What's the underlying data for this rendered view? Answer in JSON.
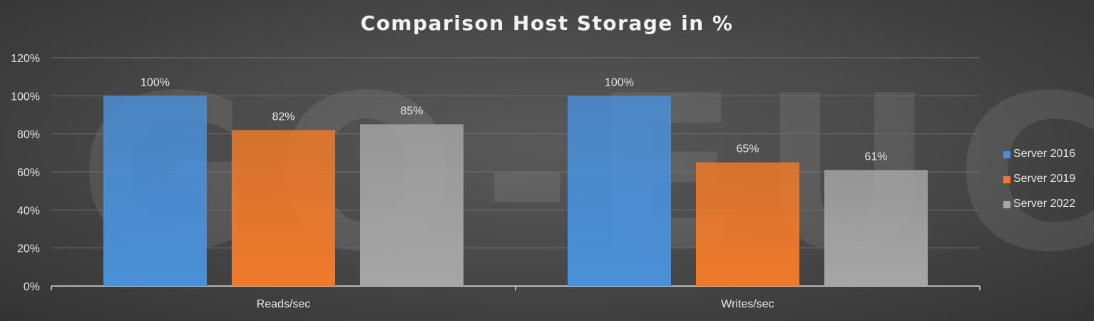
{
  "chart_data": {
    "type": "bar",
    "title": "Comparison Host Storage in %",
    "watermark": "GO-EUC",
    "categories": [
      "Reads/sec",
      "Writes/sec"
    ],
    "series": [
      {
        "name": "Server 2016",
        "values": [
          100,
          100
        ],
        "labels": [
          "100%",
          "100%"
        ],
        "color": "#4a90d9"
      },
      {
        "name": "Server 2019",
        "values": [
          82,
          65
        ],
        "labels": [
          "82%",
          "65%"
        ],
        "color": "#f07a2a"
      },
      {
        "name": "Server 2022",
        "values": [
          85,
          61
        ],
        "labels": [
          "85%",
          "61%"
        ],
        "color": "#a6a6a6"
      }
    ],
    "y_ticks": [
      "0%",
      "20%",
      "40%",
      "60%",
      "80%",
      "100%",
      "120%"
    ],
    "ylim": [
      0,
      120
    ],
    "xlabel": "",
    "ylabel": "",
    "grid": true,
    "legend_position": "right"
  }
}
